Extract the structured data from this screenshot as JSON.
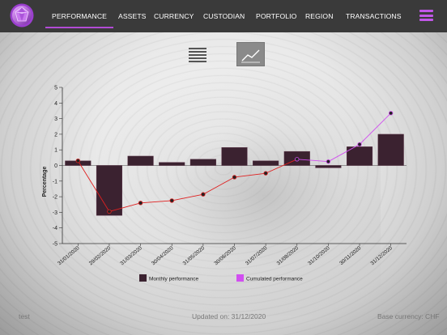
{
  "nav": {
    "tabs": [
      "PERFORMANCE",
      "ASSETS",
      "CURRENCY",
      "CUSTODIAN",
      "PORTFOLIO",
      "REGION",
      "TRANSACTIONS"
    ],
    "active": "PERFORMANCE"
  },
  "colors": {
    "accent": "#b24bd6",
    "topbar": "#3a3a3a",
    "bar": "#3b2230",
    "cumulative": "#d14ff0",
    "line": "#e02020"
  },
  "icons": {
    "logo": "gem-logo-icon",
    "menu": "hamburger-menu-icon",
    "table_view": "list-view-icon",
    "chart_view": "line-chart-icon"
  },
  "chart_data": {
    "type": "bar",
    "ylabel": "Percentage",
    "ylim": [
      -5,
      5
    ],
    "yticks": [
      "5",
      "4",
      "3",
      "2",
      "1",
      "0",
      "-1",
      "-2",
      "-3",
      "-4",
      "-5"
    ],
    "categories": [
      "31/01/2020",
      "29/02/2020",
      "31/03/2020",
      "30/04/2020",
      "31/05/2020",
      "30/06/2020",
      "31/07/2020",
      "31/08/2020",
      "31/10/2020",
      "30/11/2020",
      "31/12/2020"
    ],
    "series": [
      {
        "name": "Monthly performance",
        "type": "bar",
        "values": [
          0.3,
          -3.2,
          0.6,
          0.2,
          0.4,
          1.15,
          0.3,
          0.9,
          -0.15,
          1.2,
          2.0
        ]
      },
      {
        "name": "Cumulated performance",
        "type": "line",
        "values": [
          0.3,
          -2.95,
          -2.4,
          -2.25,
          -1.85,
          -0.75,
          -0.5,
          0.4,
          0.25,
          1.35,
          3.35
        ]
      }
    ],
    "legend": [
      "Monthly performance",
      "Cumulated performance"
    ],
    "legend_position": "bottom"
  },
  "footer": {
    "left": "test",
    "center": "Updated on: 31/12/2020",
    "right": "Base currency: CHF"
  }
}
